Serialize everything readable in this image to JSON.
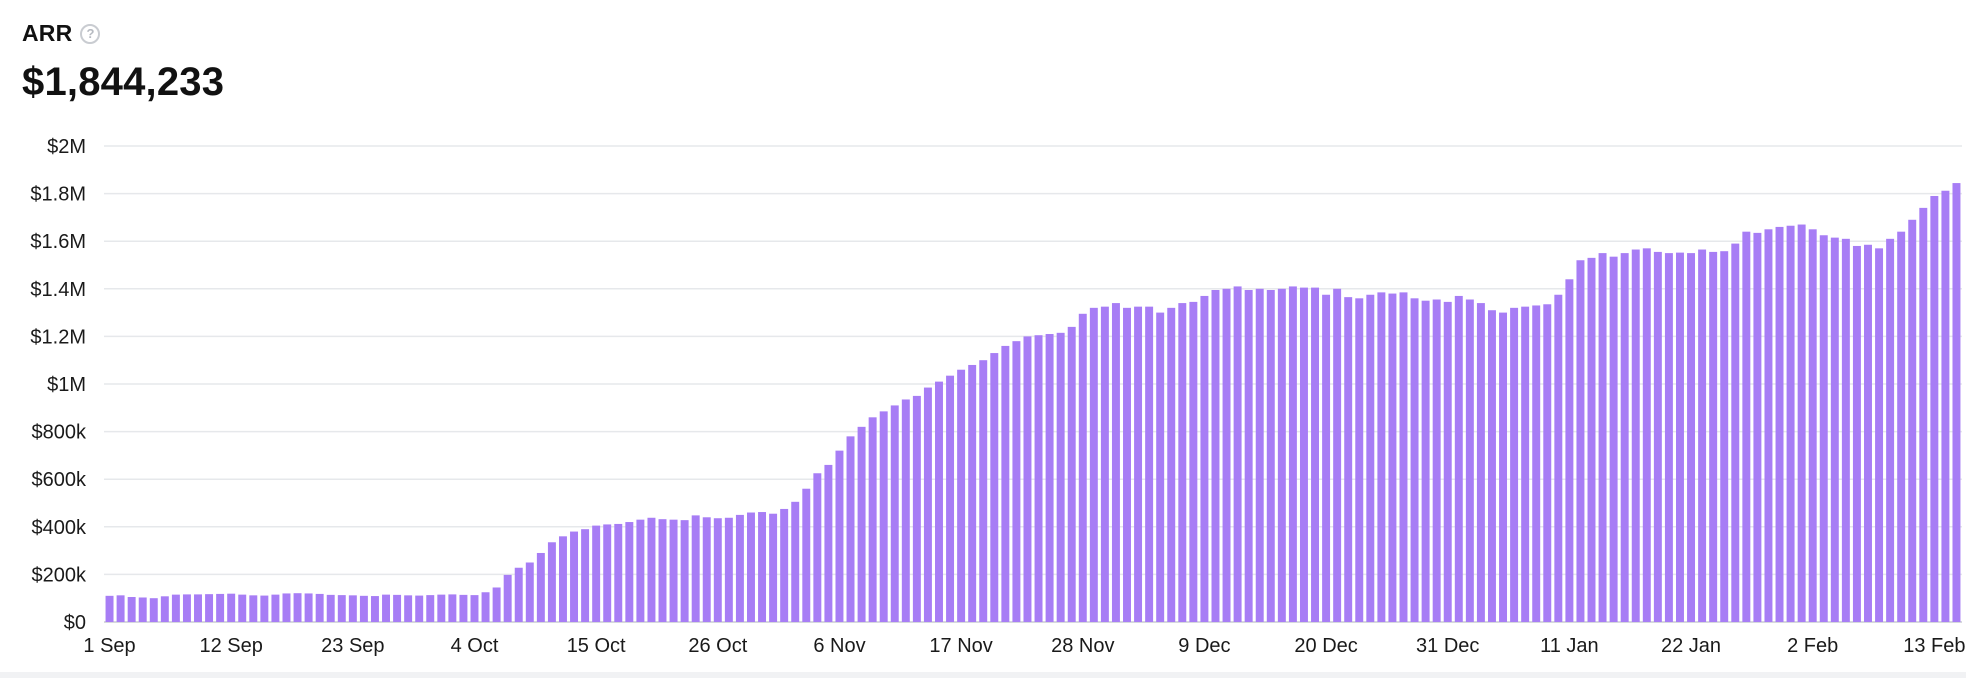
{
  "metric": {
    "label": "ARR",
    "help_icon": "question-circle-icon",
    "value": "$1,844,233"
  },
  "chart_data": {
    "type": "bar",
    "title": "",
    "xlabel": "",
    "ylabel": "",
    "ylim": [
      0,
      2000000
    ],
    "grid": true,
    "color": "#a77df5",
    "y_ticks": [
      {
        "value": 0,
        "label": "$0"
      },
      {
        "value": 200000,
        "label": "$200k"
      },
      {
        "value": 400000,
        "label": "$400k"
      },
      {
        "value": 600000,
        "label": "$600k"
      },
      {
        "value": 800000,
        "label": "$800k"
      },
      {
        "value": 1000000,
        "label": "$1M"
      },
      {
        "value": 1200000,
        "label": "$1.2M"
      },
      {
        "value": 1400000,
        "label": "$1.4M"
      },
      {
        "value": 1600000,
        "label": "$1.6M"
      },
      {
        "value": 1800000,
        "label": "$1.8M"
      },
      {
        "value": 2000000,
        "label": "$2M"
      }
    ],
    "x_ticks": [
      {
        "index": 0,
        "label": "1 Sep"
      },
      {
        "index": 11,
        "label": "12 Sep"
      },
      {
        "index": 22,
        "label": "23 Sep"
      },
      {
        "index": 33,
        "label": "4 Oct"
      },
      {
        "index": 44,
        "label": "15 Oct"
      },
      {
        "index": 55,
        "label": "26 Oct"
      },
      {
        "index": 66,
        "label": "6 Nov"
      },
      {
        "index": 77,
        "label": "17 Nov"
      },
      {
        "index": 88,
        "label": "28 Nov"
      },
      {
        "index": 99,
        "label": "9 Dec"
      },
      {
        "index": 110,
        "label": "20 Dec"
      },
      {
        "index": 121,
        "label": "31 Dec"
      },
      {
        "index": 132,
        "label": "11 Jan"
      },
      {
        "index": 143,
        "label": "22 Jan"
      },
      {
        "index": 154,
        "label": "2 Feb"
      },
      {
        "index": 165,
        "label": "13 Feb"
      }
    ],
    "series": [
      {
        "values": [
          110000,
          112000,
          105000,
          103000,
          100000,
          108000,
          115000,
          116000,
          116000,
          117000,
          118000,
          119000,
          115000,
          112000,
          111000,
          115000,
          120000,
          121000,
          120000,
          118000,
          114000,
          113000,
          112000,
          110000,
          109000,
          115000,
          114000,
          112000,
          111000,
          113000,
          115000,
          116000,
          114000,
          113000,
          125000,
          145000,
          198000,
          228000,
          250000,
          290000,
          335000,
          360000,
          380000,
          390000,
          405000,
          410000,
          412000,
          420000,
          430000,
          438000,
          432000,
          430000,
          428000,
          448000,
          440000,
          436000,
          438000,
          450000,
          460000,
          462000,
          455000,
          475000,
          505000,
          560000,
          625000,
          660000,
          720000,
          780000,
          820000,
          860000,
          885000,
          910000,
          935000,
          950000,
          985000,
          1010000,
          1035000,
          1060000,
          1080000,
          1100000,
          1130000,
          1160000,
          1180000,
          1200000,
          1205000,
          1210000,
          1215000,
          1240000,
          1295000,
          1320000,
          1325000,
          1340000,
          1320000,
          1325000,
          1325000,
          1300000,
          1320000,
          1340000,
          1345000,
          1370000,
          1395000,
          1400000,
          1410000,
          1395000,
          1400000,
          1395000,
          1400000,
          1410000,
          1405000,
          1405000,
          1375000,
          1400000,
          1365000,
          1360000,
          1375000,
          1385000,
          1380000,
          1385000,
          1360000,
          1350000,
          1355000,
          1345000,
          1370000,
          1355000,
          1340000,
          1310000,
          1300000,
          1320000,
          1325000,
          1330000,
          1335000,
          1375000,
          1440000,
          1520000,
          1530000,
          1550000,
          1535000,
          1550000,
          1565000,
          1570000,
          1555000,
          1550000,
          1552000,
          1550000,
          1565000,
          1555000,
          1558000,
          1590000,
          1640000,
          1635000,
          1650000,
          1660000,
          1665000,
          1670000,
          1650000,
          1625000,
          1615000,
          1610000,
          1580000,
          1585000,
          1570000,
          1610000,
          1640000,
          1690000,
          1740000,
          1790000,
          1812000,
          1844233
        ]
      }
    ]
  }
}
